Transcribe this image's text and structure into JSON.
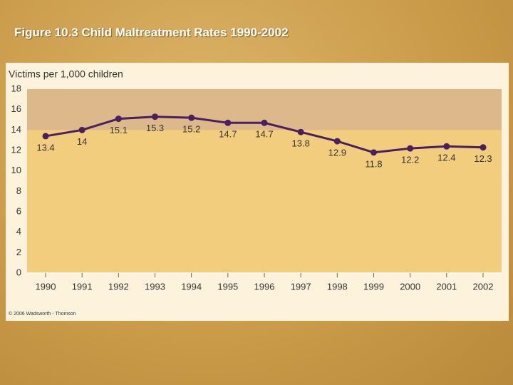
{
  "slide_title": "Figure 10.3 Child Maltreatment Rates 1990-2002",
  "chart_data": {
    "type": "line",
    "y_axis_label": "Victims per 1,000 children",
    "categories": [
      "1990",
      "1991",
      "1992",
      "1993",
      "1994",
      "1995",
      "1996",
      "1997",
      "1998",
      "1999",
      "2000",
      "2001",
      "2002"
    ],
    "values": [
      13.4,
      14.0,
      15.1,
      15.3,
      15.2,
      14.7,
      14.7,
      13.8,
      12.9,
      11.8,
      12.2,
      12.4,
      12.3
    ],
    "color": "#4a1f5e",
    "ylim": [
      0,
      18
    ],
    "yticks": [
      0,
      2,
      4,
      6,
      8,
      10,
      12,
      14,
      16,
      18
    ],
    "shaded_band": [
      14,
      18
    ],
    "grid": false,
    "credit": "© 2006 Wadsworth - Thomson"
  }
}
